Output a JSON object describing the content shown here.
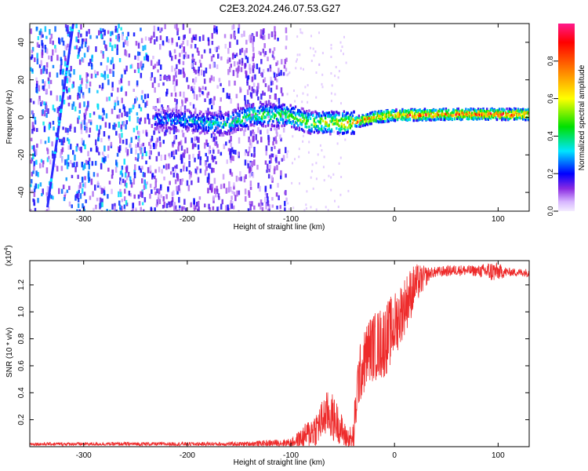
{
  "title": "C2E3.2024.246.07.53.G27",
  "chart_data": [
    {
      "type": "heatmap",
      "xlabel": "Height of straight line (km)",
      "ylabel": "Frequency (Hz)",
      "xlim": [
        -352,
        130
      ],
      "ylim": [
        -50,
        50
      ],
      "x_ticks": [
        -300,
        -200,
        -100,
        0,
        100
      ],
      "y_ticks": [
        -40,
        -20,
        0,
        20,
        40
      ],
      "colorbar": {
        "label": "Normalized spectral amplitude",
        "range": [
          0,
          1
        ],
        "ticks": [
          "0.0",
          "0.2",
          "0.4",
          "0.6",
          "0.8"
        ],
        "tick_values": [
          0.0,
          0.2,
          0.4,
          0.6,
          0.8
        ],
        "colors": [
          "#ffffff",
          "#d7b6ff",
          "#8a2be2",
          "#0000ff",
          "#00e5ff",
          "#00e000",
          "#ffff00",
          "#ff8000",
          "#ff0000",
          "#ff1a8c"
        ]
      },
      "noise_band": {
        "x": [
          -352,
          -105
        ],
        "density_amplitude": 0.3
      },
      "track": [
        {
          "x": -335,
          "y": -48
        },
        {
          "x": -310,
          "y": 50
        }
      ],
      "signal_centerline": [
        {
          "x": -232,
          "y": -1,
          "amp": 0.3
        },
        {
          "x": -200,
          "y": -2,
          "amp": 0.35
        },
        {
          "x": -165,
          "y": -4,
          "amp": 0.45
        },
        {
          "x": -140,
          "y": 1,
          "amp": 0.5
        },
        {
          "x": -105,
          "y": 1,
          "amp": 0.55
        },
        {
          "x": -80,
          "y": -3,
          "amp": 0.6
        },
        {
          "x": -60,
          "y": -3,
          "amp": 0.7
        },
        {
          "x": -40,
          "y": -3,
          "amp": 0.8
        },
        {
          "x": -20,
          "y": 0,
          "amp": 0.85
        },
        {
          "x": 0,
          "y": 1,
          "amp": 0.9
        },
        {
          "x": 50,
          "y": 1.5,
          "amp": 0.9
        },
        {
          "x": 90,
          "y": 1.5,
          "amp": 0.95
        },
        {
          "x": 130,
          "y": 1.5,
          "amp": 0.92
        }
      ]
    },
    {
      "type": "line",
      "xlabel": "Height of straight line (km)",
      "ylabel": "SNR (10 * v/v)",
      "y_multiplier": "(x10",
      "y_multiplier_exp": "4",
      "xlim": [
        -352,
        130
      ],
      "ylim": [
        0,
        1.38
      ],
      "x_ticks": [
        -300,
        -200,
        -100,
        0,
        100
      ],
      "y_ticks": [
        0.2,
        0.4,
        0.6,
        0.8,
        1.0,
        1.2
      ],
      "y_tick_labels": [
        "0.2",
        "0.4",
        "0.6",
        "0.8",
        "1.0",
        "1.2"
      ],
      "color": "#ee2b2b",
      "series_envelope": [
        {
          "x": -352,
          "y": 0.02
        },
        {
          "x": -150,
          "y": 0.02
        },
        {
          "x": -100,
          "y": 0.03
        },
        {
          "x": -90,
          "y": 0.06
        },
        {
          "x": -75,
          "y": 0.14
        },
        {
          "x": -65,
          "y": 0.25
        },
        {
          "x": -55,
          "y": 0.18
        },
        {
          "x": -48,
          "y": 0.08
        },
        {
          "x": -40,
          "y": 0.03
        },
        {
          "x": -35,
          "y": 0.5
        },
        {
          "x": -25,
          "y": 0.72
        },
        {
          "x": -10,
          "y": 0.78
        },
        {
          "x": 0,
          "y": 0.9
        },
        {
          "x": 10,
          "y": 1.05
        },
        {
          "x": 20,
          "y": 1.2
        },
        {
          "x": 35,
          "y": 1.29
        },
        {
          "x": 60,
          "y": 1.31
        },
        {
          "x": 90,
          "y": 1.3
        },
        {
          "x": 130,
          "y": 1.29
        }
      ],
      "noise_scale": [
        {
          "x": -352,
          "n": 0.012
        },
        {
          "x": -150,
          "n": 0.015
        },
        {
          "x": -100,
          "n": 0.03
        },
        {
          "x": -80,
          "n": 0.12
        },
        {
          "x": -60,
          "n": 0.18
        },
        {
          "x": -45,
          "n": 0.08
        },
        {
          "x": -35,
          "n": 0.22
        },
        {
          "x": -10,
          "n": 0.28
        },
        {
          "x": 15,
          "n": 0.2
        },
        {
          "x": 35,
          "n": 0.04
        },
        {
          "x": 80,
          "n": 0.04
        },
        {
          "x": 95,
          "n": 0.08
        },
        {
          "x": 110,
          "n": 0.03
        },
        {
          "x": 130,
          "n": 0.03
        }
      ]
    }
  ]
}
